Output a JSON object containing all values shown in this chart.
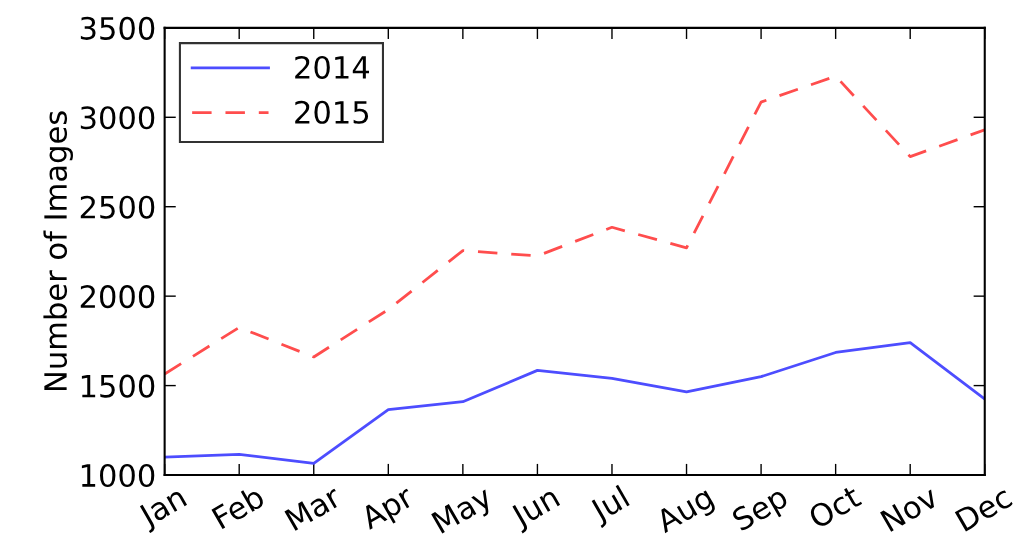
{
  "chart_data": {
    "type": "line",
    "ylabel": "Number of Images",
    "categories": [
      "Jan",
      "Feb",
      "Mar",
      "Apr",
      "May",
      "Jun",
      "Jul",
      "Aug",
      "Sep",
      "Oct",
      "Nov",
      "Dec"
    ],
    "series": [
      {
        "name": "2014",
        "color": "#4d4dff",
        "line_style": "solid",
        "values": [
          1100,
          1115,
          1065,
          1365,
          1410,
          1585,
          1540,
          1465,
          1550,
          1685,
          1740,
          1425
        ]
      },
      {
        "name": "2015",
        "color": "#ff4d4d",
        "line_style": "dashed",
        "values": [
          1565,
          1825,
          1660,
          1925,
          2255,
          2225,
          2385,
          2270,
          3085,
          3230,
          2780,
          2930
        ]
      }
    ],
    "ylim": [
      1000,
      3500
    ],
    "yticks": [
      1000,
      1500,
      2000,
      2500,
      3000,
      3500
    ],
    "grid": false,
    "legend": "top left",
    "marker": "none"
  }
}
